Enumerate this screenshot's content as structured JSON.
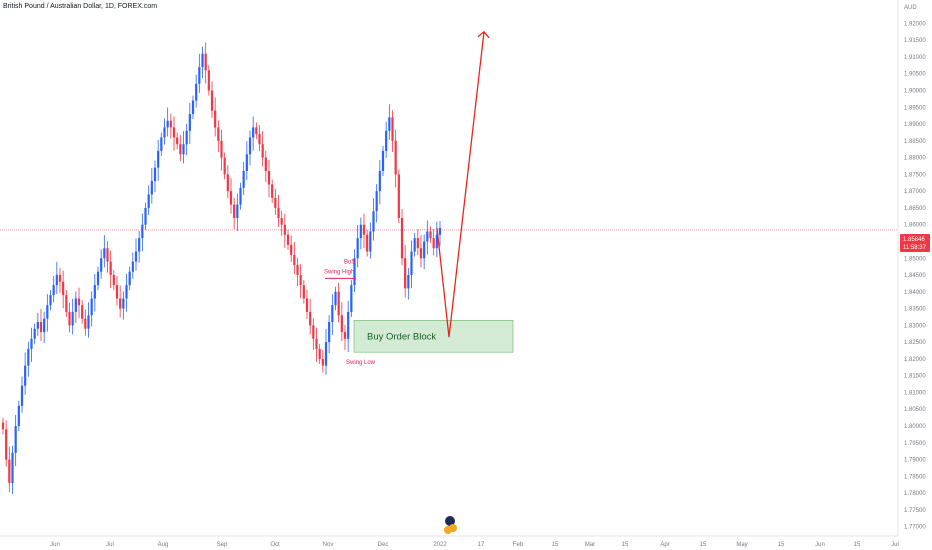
{
  "header": {
    "title": "British Pound / Australian Dollar, 1D, FOREX.com"
  },
  "price_axis": {
    "currency": "AUD",
    "current_price": "1.85846",
    "countdown": "11:58:37"
  },
  "colors": {
    "up": "#2962ff",
    "down": "#f23645",
    "projection": "#e8261d",
    "annotation": "#e91e63",
    "order_block_fill": "#c8e6c9",
    "order_block_stroke": "#66bb6a"
  },
  "annotations": {
    "bos": "BoS",
    "swing_high": "Swing High",
    "swing_low": "Swing Low",
    "order_block": "Buy Order Block"
  },
  "chart_data": {
    "type": "candlestick",
    "symbol": "GBPAUD",
    "timeframe": "1D",
    "y_ticks": [
      "1.92000",
      "1.91500",
      "1.91000",
      "1.90500",
      "1.90000",
      "1.89500",
      "1.89000",
      "1.88500",
      "1.88000",
      "1.87500",
      "1.87000",
      "1.86500",
      "1.86000",
      "1.85500",
      "1.85000",
      "1.84500",
      "1.84000",
      "1.83500",
      "1.83000",
      "1.82500",
      "1.82000",
      "1.81500",
      "1.81000",
      "1.80500",
      "1.80000",
      "1.79500",
      "1.79000",
      "1.78500",
      "1.78000",
      "1.77500",
      "1.77000"
    ],
    "x_ticks": [
      "Jun",
      "Jul",
      "Aug",
      "Sep",
      "Oct",
      "Nov",
      "Dec",
      "2022",
      "17",
      "Feb",
      "15",
      "Mar",
      "15",
      "Apr",
      "15",
      "May",
      "15",
      "Jun",
      "15",
      "Jul"
    ],
    "ylim": [
      1.769,
      1.924
    ],
    "series_close_path": [
      1.799,
      1.79,
      1.783,
      1.792,
      1.8,
      1.806,
      1.812,
      1.818,
      1.823,
      1.826,
      1.829,
      1.831,
      1.828,
      1.832,
      1.836,
      1.839,
      1.842,
      1.845,
      1.843,
      1.839,
      1.834,
      1.83,
      1.834,
      1.838,
      1.836,
      1.832,
      1.829,
      1.833,
      1.838,
      1.842,
      1.846,
      1.85,
      1.853,
      1.849,
      1.845,
      1.842,
      1.838,
      1.835,
      1.838,
      1.842,
      1.846,
      1.849,
      1.852,
      1.856,
      1.86,
      1.865,
      1.869,
      1.873,
      1.877,
      1.882,
      1.886,
      1.889,
      1.891,
      1.889,
      1.886,
      1.884,
      1.881,
      1.884,
      1.888,
      1.893,
      1.897,
      1.902,
      1.907,
      1.911,
      1.906,
      1.9,
      1.894,
      1.889,
      1.885,
      1.88,
      1.875,
      1.87,
      1.866,
      1.862,
      1.866,
      1.871,
      1.876,
      1.881,
      1.886,
      1.889,
      1.887,
      1.884,
      1.88,
      1.876,
      1.872,
      1.868,
      1.865,
      1.862,
      1.86,
      1.857,
      1.854,
      1.851,
      1.848,
      1.845,
      1.842,
      1.838,
      1.834,
      1.83,
      1.826,
      1.823,
      1.82,
      1.818,
      1.825,
      1.831,
      1.836,
      1.84,
      1.833,
      1.828,
      1.826,
      1.834,
      1.842,
      1.85,
      1.856,
      1.86,
      1.857,
      1.852,
      1.858,
      1.864,
      1.87,
      1.876,
      1.882,
      1.888,
      1.892,
      1.885,
      1.875,
      1.862,
      1.85,
      1.841,
      1.845,
      1.852,
      1.856,
      1.853,
      1.85,
      1.855,
      1.858,
      1.856,
      1.853,
      1.857,
      1.859
    ],
    "projection": [
      {
        "x": "2022-01-02",
        "y": 1.859
      },
      {
        "x": "2022-01-03",
        "y": 1.8265
      },
      {
        "x": "2022-01-20",
        "y": 1.9175
      }
    ],
    "order_block": {
      "x_start": "2021-11-17",
      "x_end": "2022-01-30",
      "y_low": 1.822,
      "y_high": 1.8315
    },
    "swing_high_level": 1.844,
    "swing_low_level": 1.822,
    "grid": false
  }
}
